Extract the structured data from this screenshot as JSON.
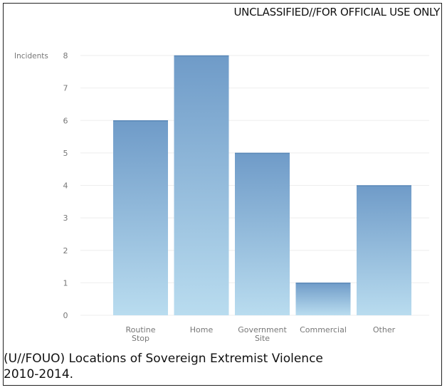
{
  "marking": "UNCLASSIFIED//FOR OFFICIAL USE ONLY",
  "caption": {
    "line1": "(U//FOUO)  Locations of Sovereign Extremist Violence",
    "line2": "2010-2014."
  },
  "chart_data": {
    "type": "bar",
    "ylabel": "Incidents",
    "xlabel": "",
    "categories": [
      [
        "Routine",
        "Stop"
      ],
      [
        "Home"
      ],
      [
        "Government",
        "Site"
      ],
      [
        "Commercial"
      ],
      [
        "Other"
      ]
    ],
    "values": [
      6,
      8,
      5,
      1,
      4
    ],
    "ylim": [
      0,
      8
    ],
    "yticks": [
      0,
      1,
      2,
      3,
      4,
      5,
      6,
      7,
      8
    ],
    "grid": true,
    "legend": "none",
    "colors": {
      "bar_top": "#6f9bc8",
      "bar_bottom": "#b9dcef",
      "grid": "#eeeeee",
      "tick_text": "#777777"
    }
  }
}
